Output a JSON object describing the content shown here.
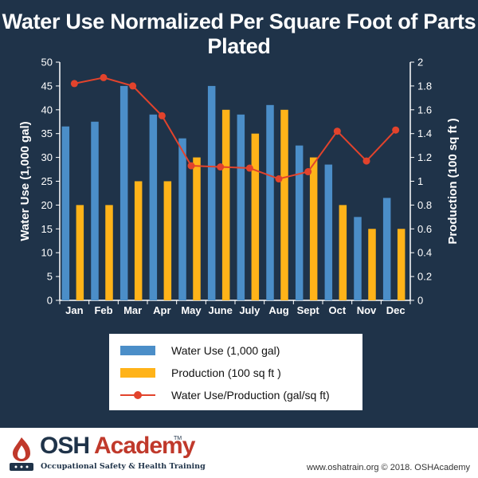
{
  "title": "Water Use Normalized Per Square Foot of Parts Plated",
  "chart_data": {
    "type": "bar",
    "title": "Water Use Normalized Per Square Foot of Parts Plated",
    "categories": [
      "Jan",
      "Feb",
      "Mar",
      "Apr",
      "May",
      "June",
      "July",
      "Aug",
      "Sept",
      "Oct",
      "Nov",
      "Dec"
    ],
    "series": [
      {
        "name": "Water Use (1,000 gal)",
        "type": "bar",
        "axis": "left",
        "color": "#4b8ec8",
        "values": [
          36.5,
          37.5,
          45,
          39,
          34,
          45,
          39,
          41,
          32.5,
          28.5,
          17.5,
          21.5
        ]
      },
      {
        "name": "Production (100 sq ft )",
        "type": "bar",
        "axis": "left",
        "color": "#ffb319",
        "values": [
          20,
          20,
          25,
          25,
          30,
          40,
          35,
          40,
          30,
          20,
          15,
          15
        ]
      },
      {
        "name": "Water Use/Production (gal/sq ft)",
        "type": "line",
        "axis": "right",
        "color": "#e2432c",
        "values": [
          1.82,
          1.87,
          1.8,
          1.55,
          1.13,
          1.12,
          1.11,
          1.02,
          1.08,
          1.42,
          1.17,
          1.43
        ]
      }
    ],
    "ylabel": "Water Use (1,000 gal)",
    "y2label": "Production (100 sq ft )",
    "ylim": [
      0,
      50
    ],
    "y2lim": [
      0,
      2
    ],
    "yticks": [
      "0",
      "5",
      "10",
      "15",
      "20",
      "25",
      "30",
      "35",
      "40",
      "45",
      "50"
    ],
    "y2ticks": [
      "0",
      "0.2",
      "0.4",
      "0.6",
      "0.8",
      "1",
      "1.2",
      "1.4",
      "1.6",
      "1.8",
      "2"
    ],
    "grid": false,
    "legend": "bottom"
  },
  "legend": {
    "items": [
      {
        "label": "Water Use (1,000 gal)",
        "color": "#4b8ec8",
        "kind": "bar"
      },
      {
        "label": "Production (100 sq ft )",
        "color": "#ffb319",
        "kind": "bar"
      },
      {
        "label": "Water Use/Production (gal/sq ft)",
        "color": "#e2432c",
        "kind": "line"
      }
    ]
  },
  "footer": {
    "logo_osh": "OSH",
    "logo_academy": "Academy",
    "logo_tm": "TM",
    "logo_tagline": "Occupational Safety & Health Training",
    "copyright": "www.oshatrain.org © 2018. OSHAcademy"
  },
  "colors": {
    "background": "#1f3349",
    "brand_navy": "#1f3349",
    "brand_red": "#c0392b"
  }
}
